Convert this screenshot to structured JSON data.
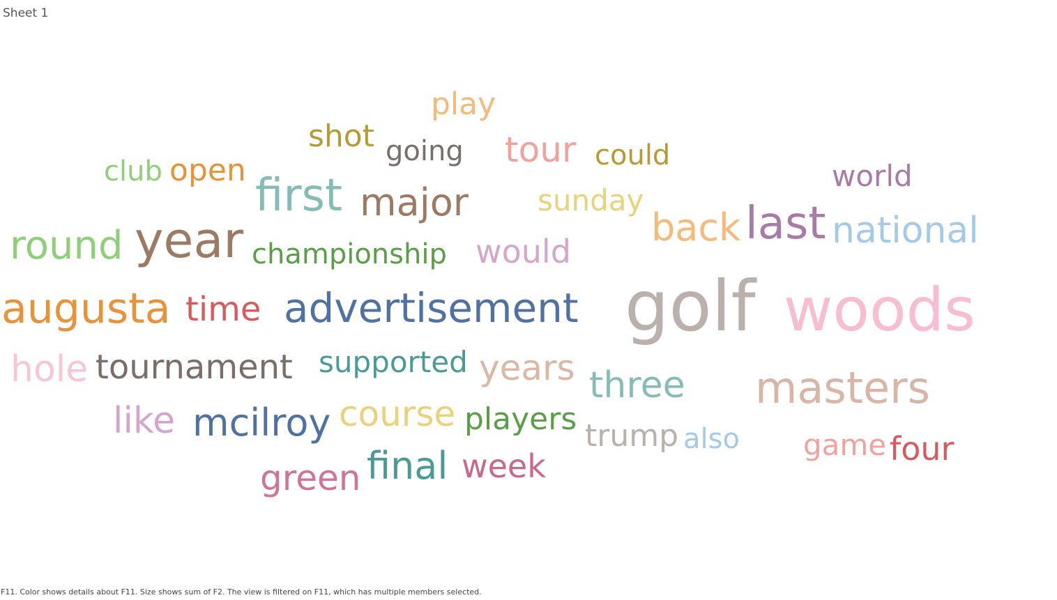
{
  "sheet": {
    "title": "Sheet 1"
  },
  "caption": "F11.  Color shows details about F11.  Size shows sum of F2. The view is filtered on F11, which has multiple members selected.",
  "chart_data": {
    "type": "wordcloud",
    "color_field": "F11",
    "size_field": "F2",
    "words": [
      {
        "text": "play",
        "color": "#f5b97a"
      },
      {
        "text": "shot",
        "color": "#b89a35"
      },
      {
        "text": "going",
        "color": "#7a6e6a"
      },
      {
        "text": "tour",
        "color": "#f0a39c"
      },
      {
        "text": "could",
        "color": "#b89a35"
      },
      {
        "text": "club",
        "color": "#8fcf7a"
      },
      {
        "text": "open",
        "color": "#e8923a"
      },
      {
        "text": "world",
        "color": "#a87aa6"
      },
      {
        "text": "first",
        "color": "#86bcb6"
      },
      {
        "text": "major",
        "color": "#9c7a64"
      },
      {
        "text": "sunday",
        "color": "#ead27a"
      },
      {
        "text": "back",
        "color": "#f5b97a"
      },
      {
        "text": "last",
        "color": "#a87aa6"
      },
      {
        "text": "national",
        "color": "#a4cae8"
      },
      {
        "text": "round",
        "color": "#8fcf7a"
      },
      {
        "text": "year",
        "color": "#9c7a64"
      },
      {
        "text": "championship",
        "color": "#5a9e47"
      },
      {
        "text": "would",
        "color": "#d4a6cc"
      },
      {
        "text": "augusta",
        "color": "#e8923a"
      },
      {
        "text": "time",
        "color": "#d95a5e"
      },
      {
        "text": "advertisement",
        "color": "#4f72a2"
      },
      {
        "text": "golf",
        "color": "#bab0ac"
      },
      {
        "text": "woods",
        "color": "#f7bdd0"
      },
      {
        "text": "hole",
        "color": "#f7c6d4"
      },
      {
        "text": "tournament",
        "color": "#7a6e6a"
      },
      {
        "text": "supported",
        "color": "#4a9a95"
      },
      {
        "text": "years",
        "color": "#dab8a8"
      },
      {
        "text": "three",
        "color": "#86bcb6"
      },
      {
        "text": "masters",
        "color": "#d8b5a6"
      },
      {
        "text": "like",
        "color": "#d4a6cc"
      },
      {
        "text": "mcilroy",
        "color": "#4f72a2"
      },
      {
        "text": "course",
        "color": "#ead27a"
      },
      {
        "text": "players",
        "color": "#5a9e47"
      },
      {
        "text": "trump",
        "color": "#bab0ac"
      },
      {
        "text": "also",
        "color": "#a4cae8"
      },
      {
        "text": "game",
        "color": "#f0a39c"
      },
      {
        "text": "four",
        "color": "#d95a5e"
      },
      {
        "text": "green",
        "color": "#d07396"
      },
      {
        "text": "final",
        "color": "#4a9a95"
      },
      {
        "text": "week",
        "color": "#c9678c"
      }
    ]
  }
}
